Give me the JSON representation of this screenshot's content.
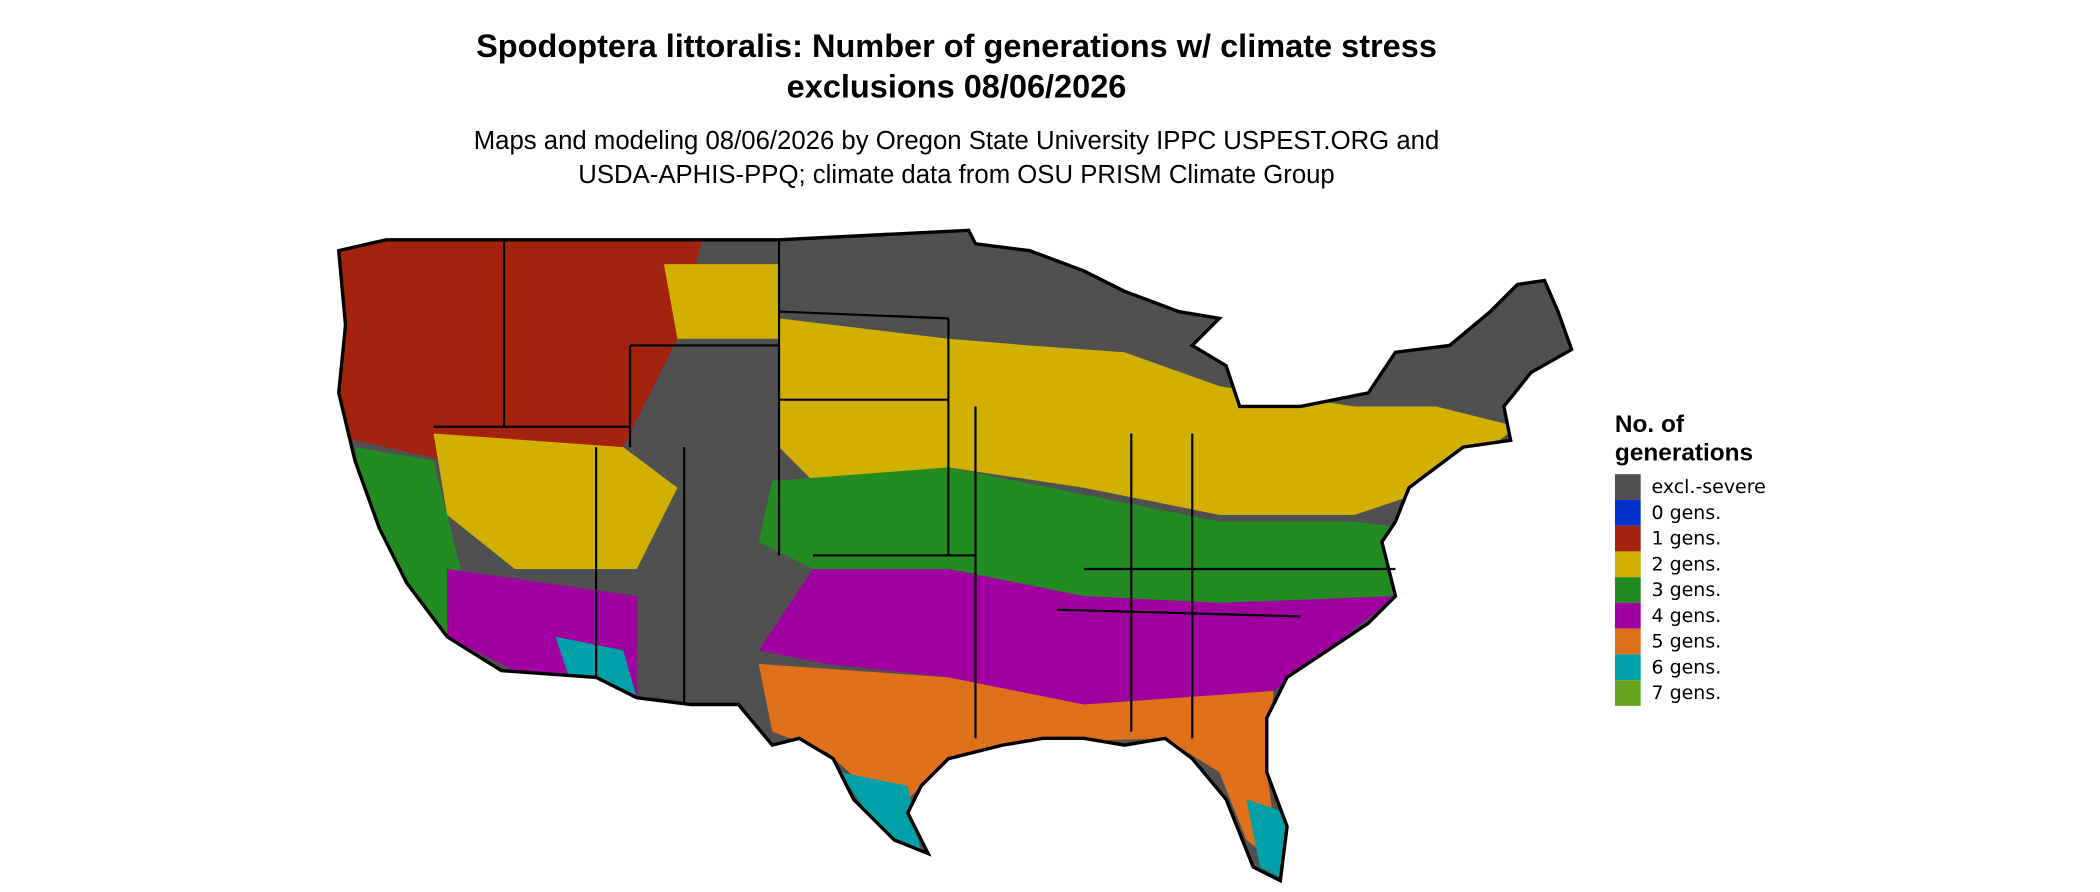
{
  "title": [
    "Spodoptera littoralis: Number of generations w/ climate stress",
    "exclusions 08/06/2026"
  ],
  "subtitle": [
    "Maps and modeling 08/06/2026 by Oregon State University IPPC USPEST.ORG and",
    "USDA-APHIS-PPQ; climate data from OSU PRISM Climate Group"
  ],
  "legend": {
    "title": [
      "No. of",
      "generations"
    ],
    "items": [
      {
        "label": "excl.-severe",
        "color": "#505050"
      },
      {
        "label": "0 gens.",
        "color": "#0033cc"
      },
      {
        "label": "1 gens.",
        "color": "#a3230f"
      },
      {
        "label": "2 gens.",
        "color": "#d1b000"
      },
      {
        "label": "3 gens.",
        "color": "#228b22"
      },
      {
        "label": "4 gens.",
        "color": "#a000a0"
      },
      {
        "label": "5 gens.",
        "color": "#e0701a"
      },
      {
        "label": "6 gens.",
        "color": "#00a0a8"
      },
      {
        "label": "7 gens.",
        "color": "#66a61e"
      }
    ]
  }
}
